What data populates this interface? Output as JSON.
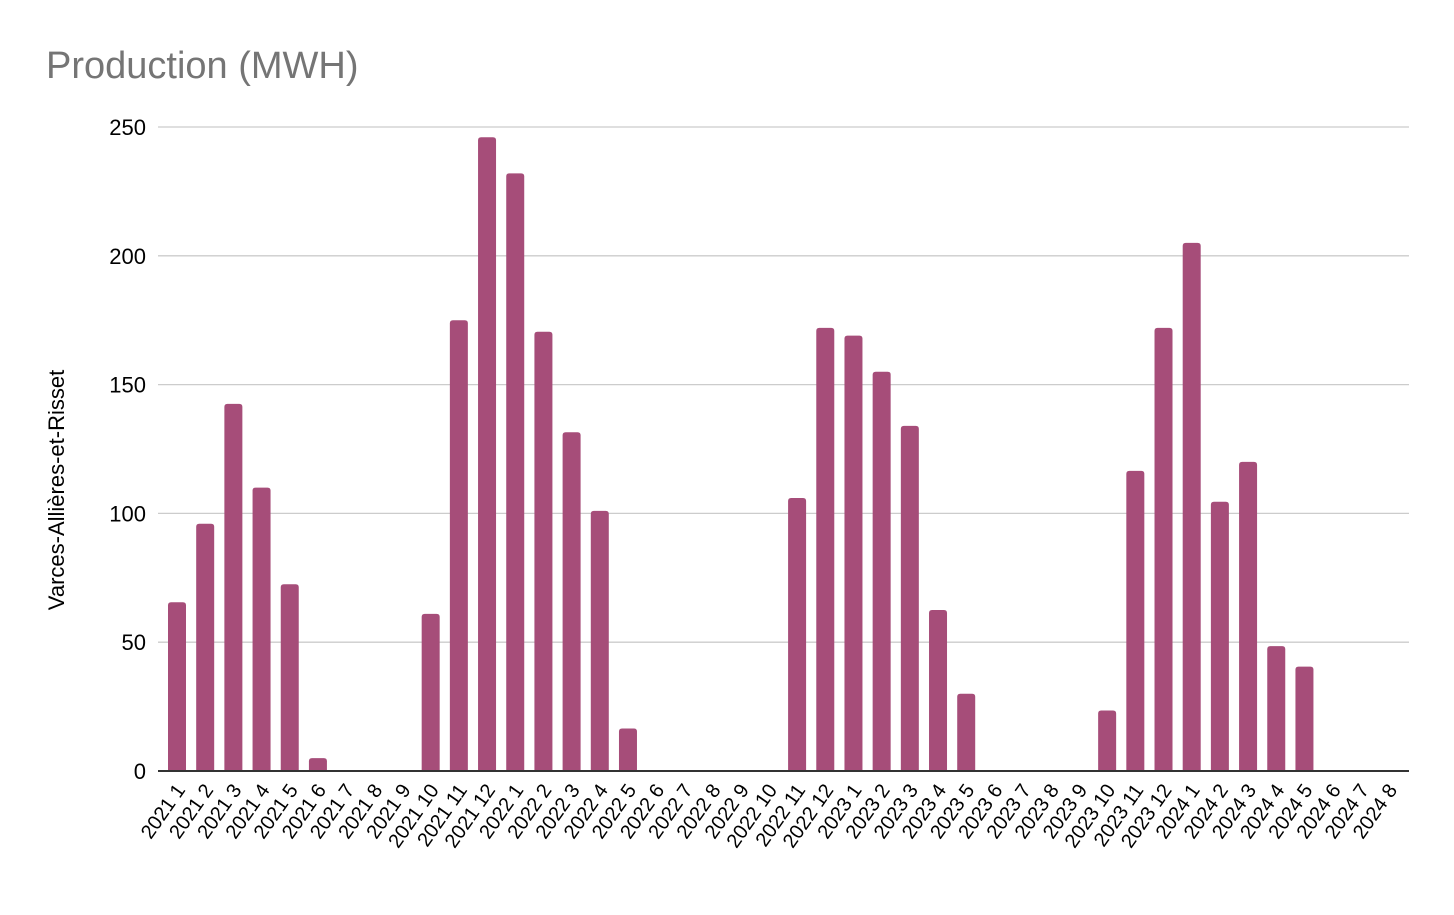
{
  "chart_data": {
    "type": "bar",
    "title": "Production (MWH)",
    "xlabel": "",
    "ylabel": "Varces-Allières-et-Risset",
    "ylim": [
      0,
      250
    ],
    "yticks": [
      0,
      50,
      100,
      150,
      200,
      250
    ],
    "grid": true,
    "legend": "none",
    "colors": {
      "bar": "#a64d79",
      "title": "#757575",
      "text": "#000000",
      "grid": "#cccccc",
      "axis": "#333333"
    },
    "categories": [
      "2021 1",
      "2021 2",
      "2021 3",
      "2021 4",
      "2021 5",
      "2021 6",
      "2021 7",
      "2021 8",
      "2021 9",
      "2021 10",
      "2021 11",
      "2021 12",
      "2022 1",
      "2022 2",
      "2022 3",
      "2022 4",
      "2022 5",
      "2022 6",
      "2022 7",
      "2022 8",
      "2022 9",
      "2022 10",
      "2022 11",
      "2022 12",
      "2023 1",
      "2023 2",
      "2023 3",
      "2023 4",
      "2023 5",
      "2023 6",
      "2023 7",
      "2023 8",
      "2023 9",
      "2023 10",
      "2023 11",
      "2023 12",
      "2024 1",
      "2024 2",
      "2024 3",
      "2024 4",
      "2024 5",
      "2024 6",
      "2024 7",
      "2024 8"
    ],
    "values": [
      65.5,
      96,
      142.5,
      110,
      72.5,
      5,
      0,
      0,
      0,
      61,
      175,
      246,
      232,
      170.5,
      131.5,
      101,
      16.5,
      0,
      0,
      0,
      0,
      0,
      106,
      172,
      169,
      155,
      134,
      62.5,
      30,
      0,
      0,
      0,
      0,
      23.5,
      116.5,
      172,
      205,
      104.5,
      120,
      48.5,
      40.5,
      0,
      0,
      0
    ]
  }
}
